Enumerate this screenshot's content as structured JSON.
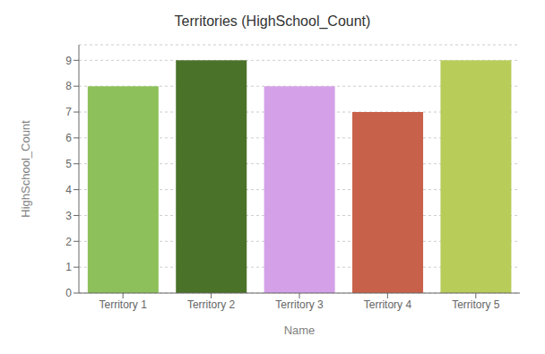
{
  "chart_data": {
    "type": "bar",
    "title": "Territories (HighSchool_Count)",
    "xlabel": "Name",
    "ylabel": "HighSchool_Count",
    "categories": [
      "Territory 1",
      "Territory 2",
      "Territory 3",
      "Territory 4",
      "Territory 5"
    ],
    "values": [
      8,
      9,
      8,
      7,
      9
    ],
    "colors": [
      "#8dc05a",
      "#4a7228",
      "#d4a0e8",
      "#c8614a",
      "#b8cc5a"
    ],
    "ylim": [
      0,
      9.6
    ],
    "yticks": [
      0,
      1,
      2,
      3,
      4,
      5,
      6,
      7,
      8,
      9
    ],
    "grid": true
  }
}
